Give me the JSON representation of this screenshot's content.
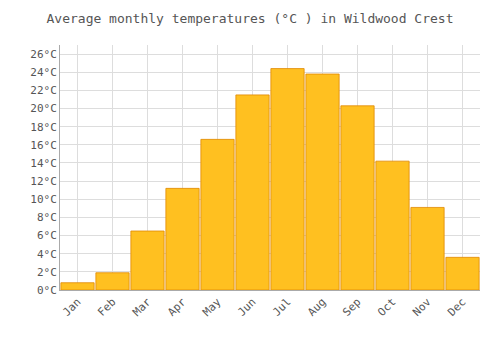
{
  "chart_data": {
    "type": "bar",
    "title": "Average monthly temperatures (°C ) in Wildwood Crest",
    "categories": [
      "Jan",
      "Feb",
      "Mar",
      "Apr",
      "May",
      "Jun",
      "Jul",
      "Aug",
      "Sep",
      "Oct",
      "Nov",
      "Dec"
    ],
    "values": [
      0.8,
      1.9,
      6.5,
      11.2,
      16.6,
      21.5,
      24.4,
      23.8,
      20.3,
      14.2,
      9.1,
      3.6
    ],
    "color": "#FFC020",
    "ylim": [
      0,
      27
    ],
    "yticks": [
      {
        "value": 0,
        "label": "0°C"
      },
      {
        "value": 2,
        "label": "2°C"
      },
      {
        "value": 4,
        "label": "4°C"
      },
      {
        "value": 6,
        "label": "6°C"
      },
      {
        "value": 8,
        "label": "8°C"
      },
      {
        "value": 10,
        "label": "10°C"
      },
      {
        "value": 12,
        "label": "12°C"
      },
      {
        "value": 14,
        "label": "14°C"
      },
      {
        "value": 16,
        "label": "16°C"
      },
      {
        "value": 18,
        "label": "18°C"
      },
      {
        "value": 20,
        "label": "20°C"
      },
      {
        "value": 22,
        "label": "22°C"
      },
      {
        "value": 24,
        "label": "24°C"
      },
      {
        "value": 26,
        "label": "26°C"
      }
    ],
    "grid": true
  }
}
